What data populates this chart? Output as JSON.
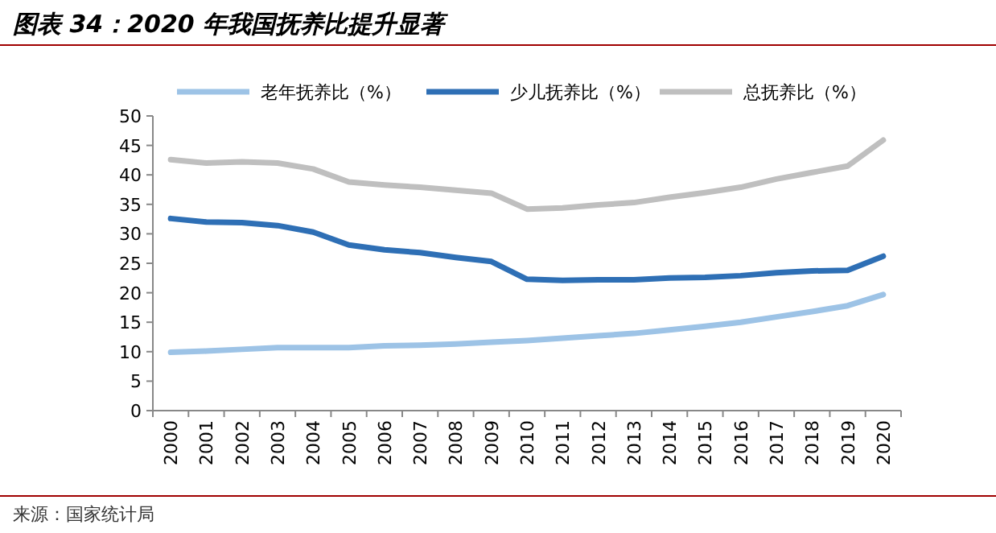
{
  "chart_data": {
    "type": "line",
    "title": "图表 34：2020 年我国抚养比提升显著",
    "annotations": [
      "来源：国家统计局"
    ],
    "categories": [
      "2000",
      "2001",
      "2002",
      "2003",
      "2004",
      "2005",
      "2006",
      "2007",
      "2008",
      "2009",
      "2010",
      "2011",
      "2012",
      "2013",
      "2014",
      "2015",
      "2016",
      "2017",
      "2018",
      "2019",
      "2020"
    ],
    "series": [
      {
        "name": "老年抚养比（%）",
        "color": "#9dc3e6",
        "values": [
          9.9,
          10.1,
          10.4,
          10.7,
          10.7,
          10.7,
          11.0,
          11.1,
          11.3,
          11.6,
          11.9,
          12.3,
          12.7,
          13.1,
          13.7,
          14.3,
          15.0,
          15.9,
          16.8,
          17.8,
          19.7
        ]
      },
      {
        "name": "少儿抚养比（%）",
        "color": "#2e6fb5",
        "values": [
          32.6,
          32.0,
          31.9,
          31.4,
          30.3,
          28.1,
          27.3,
          26.8,
          26.0,
          25.3,
          22.3,
          22.1,
          22.2,
          22.2,
          22.5,
          22.6,
          22.9,
          23.4,
          23.7,
          23.8,
          26.2
        ]
      },
      {
        "name": "总抚养比（%）",
        "color": "#bfbfbf",
        "values": [
          42.6,
          42.0,
          42.2,
          42.0,
          41.0,
          38.8,
          38.3,
          37.9,
          37.4,
          36.9,
          34.2,
          34.4,
          34.9,
          35.3,
          36.2,
          37.0,
          37.9,
          39.3,
          40.4,
          41.5,
          45.9
        ]
      }
    ],
    "ylim": [
      0,
      50
    ],
    "yticks": [
      0,
      5,
      10,
      15,
      20,
      25,
      30,
      35,
      40,
      45,
      50
    ],
    "legend": "top",
    "grid": false,
    "marker": "none",
    "line_style": "solid"
  }
}
